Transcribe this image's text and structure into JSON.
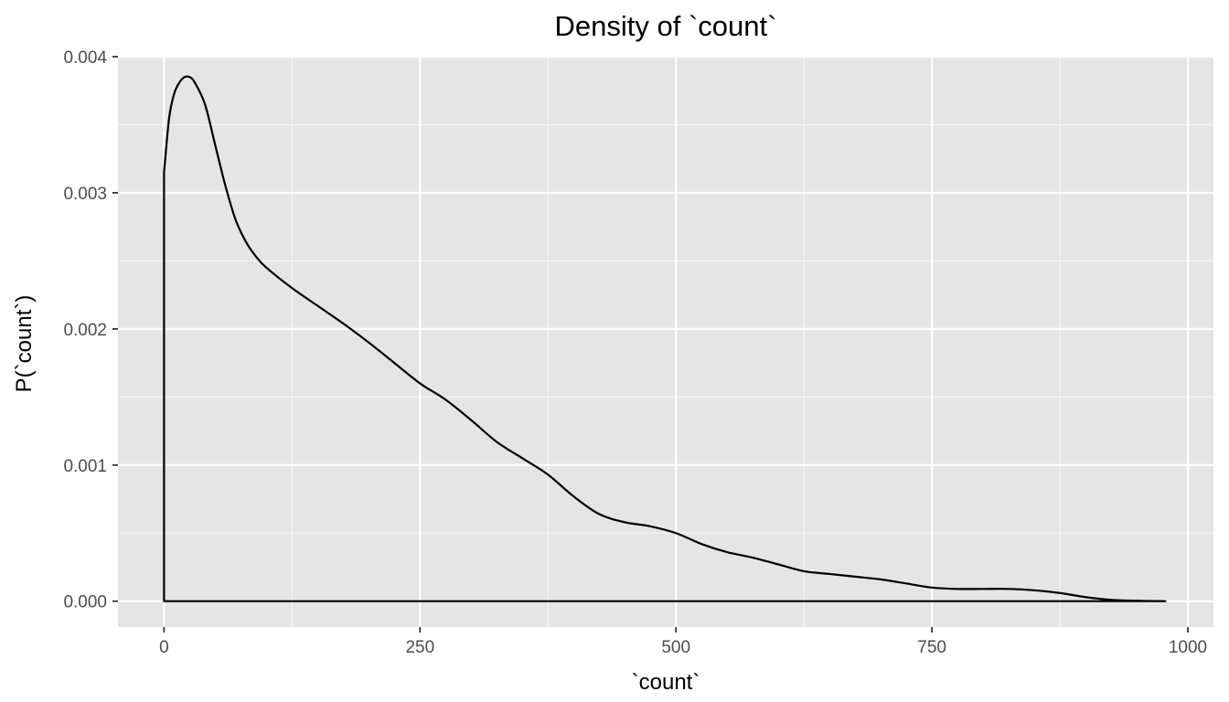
{
  "chart_data": {
    "type": "area",
    "title": "Density of `count`",
    "xlabel": "`count`",
    "ylabel": "P(`count`)",
    "xlim": [
      -45,
      1025
    ],
    "ylim": [
      -0.00019,
      0.004
    ],
    "x_ticks": [
      0,
      250,
      500,
      750,
      1000
    ],
    "x_tick_labels": [
      "0",
      "250",
      "500",
      "750",
      "1000"
    ],
    "y_ticks": [
      0,
      0.001,
      0.002,
      0.003,
      0.004
    ],
    "y_tick_labels": [
      "0.000",
      "0.001",
      "0.002",
      "0.003",
      "0.004"
    ],
    "grid": true,
    "colors": {
      "panel": "#e5e5e5",
      "grid": "#ffffff",
      "line": "#000000",
      "tick_text": "#4d4d4d"
    },
    "series": [
      {
        "x": [
          0,
          5,
          10,
          15,
          20,
          25,
          30,
          40,
          50,
          60,
          70,
          80,
          90,
          100,
          125,
          150,
          175,
          200,
          225,
          250,
          275,
          300,
          325,
          350,
          375,
          400,
          425,
          450,
          475,
          500,
          525,
          550,
          575,
          600,
          625,
          650,
          675,
          700,
          725,
          750,
          775,
          800,
          825,
          850,
          875,
          900,
          925,
          950,
          978
        ],
        "y": [
          0.00315,
          0.00355,
          0.00373,
          0.00381,
          0.00385,
          0.00385,
          0.00381,
          0.00365,
          0.00335,
          0.00305,
          0.0028,
          0.00264,
          0.00253,
          0.00245,
          0.0023,
          0.00217,
          0.00204,
          0.0019,
          0.00175,
          0.0016,
          0.00148,
          0.00133,
          0.00117,
          0.00105,
          0.00093,
          0.00077,
          0.00064,
          0.00058,
          0.00055,
          0.0005,
          0.00042,
          0.00036,
          0.00032,
          0.00027,
          0.00022,
          0.0002,
          0.00018,
          0.00016,
          0.00013,
          0.0001,
          9e-05,
          9e-05,
          9e-05,
          8e-05,
          6e-05,
          3e-05,
          1e-05,
          3e-06,
          0.0
        ]
      }
    ]
  }
}
